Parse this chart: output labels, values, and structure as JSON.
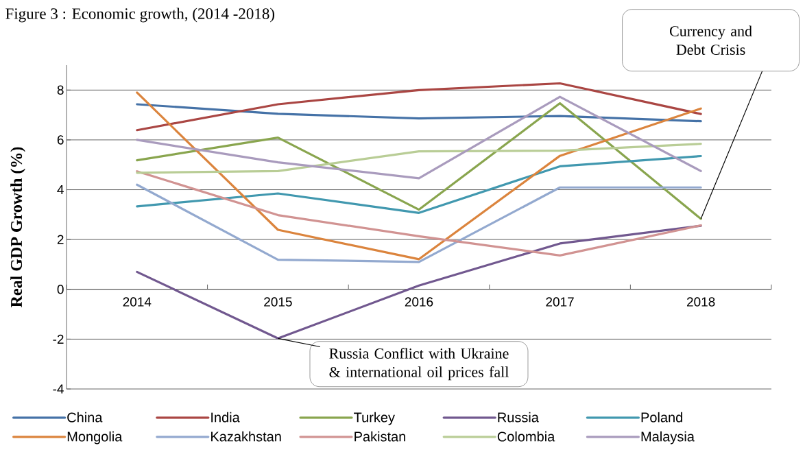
{
  "chart_data": {
    "type": "line",
    "title": "Figure 3 : Economic growth, (2014 -2018)",
    "ylabel": "Real GDP Growth (%)",
    "categories": [
      "2014",
      "2015",
      "2016",
      "2017",
      "2018"
    ],
    "series": [
      {
        "name": "China",
        "color": "#4572a7",
        "values": [
          7.43,
          7.05,
          6.86,
          6.96,
          6.75
        ]
      },
      {
        "name": "India",
        "color": "#aa4643",
        "values": [
          6.39,
          7.43,
          8.0,
          8.27,
          7.04
        ]
      },
      {
        "name": "Turkey",
        "color": "#89a54e",
        "values": [
          5.18,
          6.09,
          3.2,
          7.47,
          2.83
        ]
      },
      {
        "name": "Russia",
        "color": "#71588f",
        "values": [
          0.7,
          -1.97,
          0.15,
          1.84,
          2.55
        ]
      },
      {
        "name": "Poland",
        "color": "#4198af",
        "values": [
          3.33,
          3.85,
          3.07,
          4.94,
          5.35
        ]
      },
      {
        "name": "Mongolia",
        "color": "#db843d",
        "values": [
          7.9,
          2.39,
          1.21,
          5.36,
          7.26
        ]
      },
      {
        "name": "Kazakhstan",
        "color": "#93a9cf",
        "values": [
          4.2,
          1.19,
          1.1,
          4.09,
          4.09
        ]
      },
      {
        "name": "Pakistan",
        "color": "#d19392",
        "values": [
          4.74,
          2.98,
          2.13,
          1.36,
          2.57
        ]
      },
      {
        "name": "Colombia",
        "color": "#b9cd96",
        "values": [
          4.68,
          4.75,
          5.54,
          5.57,
          5.84
        ]
      },
      {
        "name": "Malaysia",
        "color": "#a99bbd",
        "values": [
          6.0,
          5.1,
          4.46,
          7.73,
          4.75
        ]
      }
    ],
    "ylim": [
      -4,
      9
    ],
    "yticks": [
      -4,
      -2,
      0,
      2,
      4,
      6,
      8
    ],
    "grid": "y",
    "legend": "bottom",
    "annotations": [
      {
        "text": "Currency and Debt Crisis",
        "x": "2018",
        "y": 2.83
      },
      {
        "text": "Russia Conflict with Ukraine & international oil prices fall",
        "x": "2015",
        "y": -1.97
      }
    ]
  }
}
